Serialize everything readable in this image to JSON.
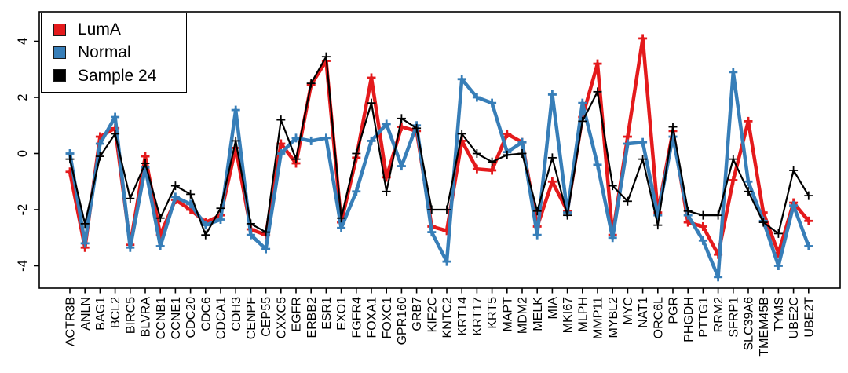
{
  "chart_data": {
    "type": "line",
    "title": "",
    "xlabel": "",
    "ylabel": "",
    "grid": false,
    "legend_position": "top-left",
    "marker": "plus",
    "x_tick_label_rotation_deg": 90,
    "y_tick_label_rotation_deg": 90,
    "ylim": [
      -4.8,
      5.0
    ],
    "yticks": [
      -4,
      -2,
      0,
      2,
      4
    ],
    "categories": [
      "ACTR3B",
      "ANLN",
      "BAG1",
      "BCL2",
      "BIRC5",
      "BLVRA",
      "CCNB1",
      "CCNE1",
      "CDC20",
      "CDC6",
      "CDCA1",
      "CDH3",
      "CENPF",
      "CEP55",
      "CXXC5",
      "EGFR",
      "ERBB2",
      "ESR1",
      "EXO1",
      "FGFR4",
      "FOXA1",
      "FOXC1",
      "GPR160",
      "GRB7",
      "KIF2C",
      "KNTC2",
      "KRT14",
      "KRT17",
      "KRT5",
      "MAPT",
      "MDM2",
      "MELK",
      "MIA",
      "MKI67",
      "MLPH",
      "MMP11",
      "MYBL2",
      "MYC",
      "NAT1",
      "ORC6L",
      "PGR",
      "PHGDH",
      "PTTG1",
      "RRM2",
      "SFRP1",
      "SLC39A6",
      "TMEM45B",
      "TYMS",
      "UBE2C",
      "UBE2T"
    ],
    "series": [
      {
        "name": "LumA",
        "color": "#e41a1c",
        "line_width": 4.5,
        "values": [
          -0.65,
          -3.35,
          0.6,
          0.9,
          -3.25,
          -0.1,
          -2.9,
          -1.65,
          -2.0,
          -2.45,
          -2.2,
          0.2,
          -2.7,
          -2.9,
          0.35,
          -0.35,
          2.45,
          3.3,
          -2.45,
          -0.15,
          2.7,
          -0.85,
          0.95,
          0.8,
          -2.6,
          -2.75,
          0.45,
          -0.55,
          -0.6,
          0.7,
          0.4,
          -2.6,
          -1.0,
          -2.05,
          1.3,
          3.2,
          -2.9,
          0.6,
          4.1,
          -2.1,
          0.8,
          -2.45,
          -2.6,
          -3.6,
          -0.95,
          1.15,
          -2.1,
          -3.55,
          -1.75,
          -2.4
        ]
      },
      {
        "name": "Normal",
        "color": "#377eb8",
        "line_width": 4.5,
        "values": [
          0.0,
          -3.2,
          0.35,
          1.3,
          -3.35,
          -0.5,
          -3.3,
          -1.55,
          -1.8,
          -2.55,
          -2.35,
          1.55,
          -2.9,
          -3.4,
          0.0,
          0.55,
          0.45,
          0.55,
          -2.65,
          -1.35,
          0.45,
          1.05,
          -0.45,
          1.0,
          -2.8,
          -3.85,
          2.65,
          2.0,
          1.8,
          0.05,
          0.4,
          -2.9,
          2.1,
          -2.1,
          1.8,
          -0.4,
          -3.0,
          0.35,
          0.4,
          -2.2,
          0.6,
          -2.2,
          -3.1,
          -4.4,
          2.9,
          -1.0,
          -2.4,
          -4.0,
          -1.85,
          -3.3
        ]
      },
      {
        "name": "Sample 24",
        "color": "#000000",
        "line_width": 2.2,
        "values": [
          -0.2,
          -2.5,
          -0.1,
          0.7,
          -1.6,
          -0.35,
          -2.3,
          -1.15,
          -1.45,
          -2.9,
          -1.95,
          0.45,
          -2.5,
          -2.8,
          1.2,
          -0.2,
          2.5,
          3.45,
          -2.3,
          0.0,
          1.8,
          -1.35,
          1.25,
          0.9,
          -2.0,
          -2.0,
          0.7,
          0.0,
          -0.3,
          -0.05,
          0.0,
          -2.05,
          -0.15,
          -2.2,
          1.15,
          2.2,
          -1.15,
          -1.7,
          -0.2,
          -2.55,
          0.95,
          -2.05,
          -2.2,
          -2.2,
          -0.2,
          -1.35,
          -2.45,
          -2.85,
          -0.6,
          -1.5
        ]
      }
    ]
  }
}
